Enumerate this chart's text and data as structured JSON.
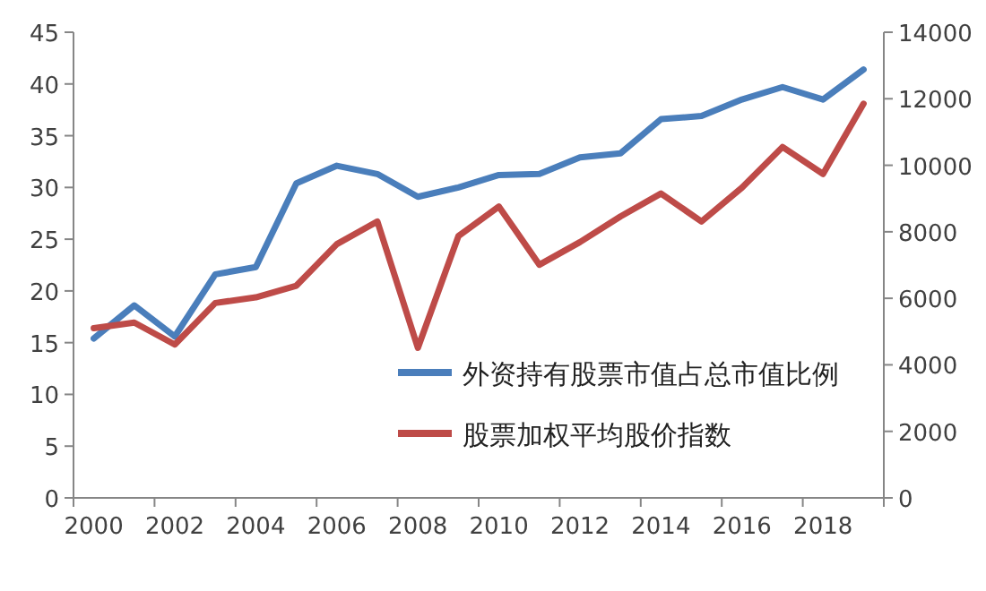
{
  "chart_data": {
    "type": "line",
    "categories": [
      "2000",
      null,
      "2002",
      null,
      "2004",
      null,
      "2006",
      null,
      "2008",
      null,
      "2010",
      null,
      "2012",
      null,
      "2014",
      null,
      "2016",
      null,
      "2018",
      null
    ],
    "series": [
      {
        "name": "外资持有股票市值占总市值比例",
        "color": "#4a7ebb",
        "values": [
          15.4,
          18.6,
          15.6,
          21.6,
          22.3,
          30.4,
          32.1,
          31.3,
          29.1,
          30.0,
          31.2,
          31.3,
          32.9,
          33.3,
          36.6,
          36.9,
          38.5,
          39.7,
          38.5,
          41.4
        ]
      },
      {
        "name": "股票加权平均股价指数",
        "color": "#be4b48",
        "axis": "y2",
        "values": [
          5100,
          5270,
          4610,
          5860,
          6030,
          6380,
          7630,
          8310,
          4510,
          7870,
          8760,
          7010,
          7690,
          8460,
          9150,
          8310,
          9330,
          10550,
          9740,
          11850
        ]
      }
    ],
    "ylim": [
      0,
      45
    ],
    "yticks": [
      0,
      5,
      10,
      15,
      20,
      25,
      30,
      35,
      40,
      45
    ],
    "y2lim": [
      0,
      14000
    ],
    "y2ticks": [
      0,
      2000,
      4000,
      6000,
      8000,
      10000,
      12000,
      14000
    ],
    "legend": "bottom right",
    "grid": false,
    "marker": "none",
    "line_style": "solid"
  }
}
